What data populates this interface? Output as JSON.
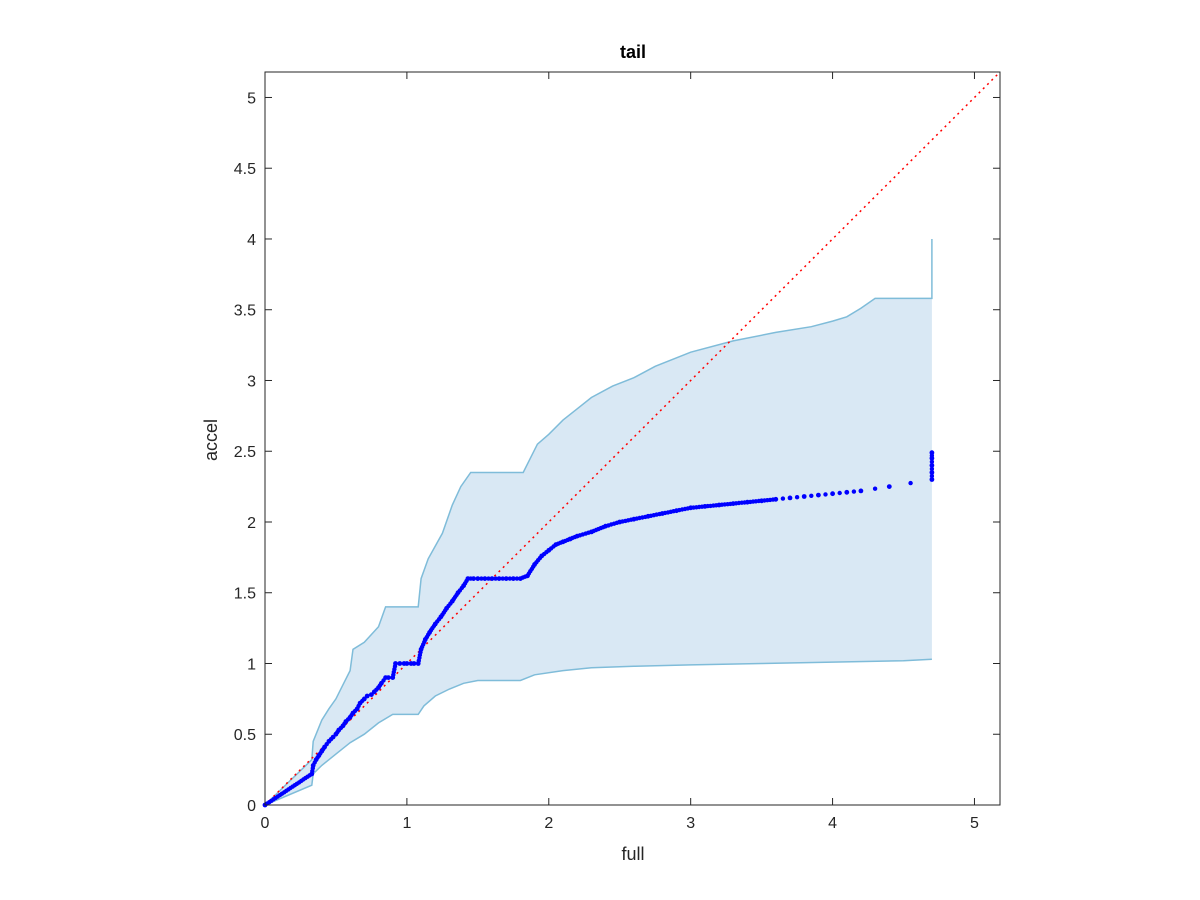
{
  "chart_data": {
    "type": "scatter",
    "title": "tail",
    "xlabel": "full",
    "ylabel": "accel",
    "xlim": [
      0,
      5.18
    ],
    "ylim": [
      0,
      5.18
    ],
    "grid": false,
    "xticks": [
      0,
      1,
      2,
      3,
      4,
      5
    ],
    "xtick_labels": [
      "0",
      "1",
      "2",
      "3",
      "4",
      "5"
    ],
    "yticks": [
      0,
      0.5,
      1,
      1.5,
      2,
      2.5,
      3,
      3.5,
      4,
      4.5,
      5
    ],
    "ytick_labels": [
      "0",
      "0.5",
      "1",
      "1.5",
      "2",
      "2.5",
      "3",
      "3.5",
      "4",
      "4.5",
      "5"
    ],
    "colors": {
      "points": "#0000ff",
      "band_fill": "#d9e8f4",
      "band_edge": "#7fbcd9",
      "reference_line": "#ff0000",
      "axes": "#262626"
    },
    "reference_line": {
      "style": "dotted",
      "x": [
        0,
        5.18
      ],
      "y": [
        0,
        5.18
      ]
    },
    "band": {
      "upper": [
        [
          0,
          0
        ],
        [
          0.33,
          0.32
        ],
        [
          0.34,
          0.45
        ],
        [
          0.4,
          0.6
        ],
        [
          0.45,
          0.68
        ],
        [
          0.5,
          0.75
        ],
        [
          0.55,
          0.85
        ],
        [
          0.6,
          0.95
        ],
        [
          0.62,
          1.1
        ],
        [
          0.7,
          1.15
        ],
        [
          0.8,
          1.26
        ],
        [
          0.85,
          1.4
        ],
        [
          0.93,
          1.4
        ],
        [
          0.95,
          1.4
        ],
        [
          1.08,
          1.4
        ],
        [
          1.1,
          1.6
        ],
        [
          1.15,
          1.74
        ],
        [
          1.25,
          1.92
        ],
        [
          1.32,
          2.12
        ],
        [
          1.38,
          2.25
        ],
        [
          1.45,
          2.35
        ],
        [
          1.82,
          2.35
        ],
        [
          1.87,
          2.45
        ],
        [
          1.92,
          2.55
        ],
        [
          2.0,
          2.62
        ],
        [
          2.1,
          2.72
        ],
        [
          2.2,
          2.8
        ],
        [
          2.3,
          2.88
        ],
        [
          2.45,
          2.96
        ],
        [
          2.6,
          3.02
        ],
        [
          2.75,
          3.1
        ],
        [
          3.0,
          3.2
        ],
        [
          3.3,
          3.28
        ],
        [
          3.6,
          3.34
        ],
        [
          3.85,
          3.38
        ],
        [
          4.0,
          3.42
        ],
        [
          4.1,
          3.45
        ],
        [
          4.2,
          3.51
        ],
        [
          4.3,
          3.58
        ],
        [
          4.7,
          3.58
        ],
        [
          4.7,
          4.0
        ]
      ],
      "lower": [
        [
          0,
          0
        ],
        [
          0.33,
          0.14
        ],
        [
          0.34,
          0.22
        ],
        [
          0.4,
          0.28
        ],
        [
          0.5,
          0.36
        ],
        [
          0.6,
          0.44
        ],
        [
          0.7,
          0.5
        ],
        [
          0.8,
          0.58
        ],
        [
          0.9,
          0.64
        ],
        [
          1.08,
          0.64
        ],
        [
          1.12,
          0.7
        ],
        [
          1.2,
          0.77
        ],
        [
          1.3,
          0.82
        ],
        [
          1.4,
          0.86
        ],
        [
          1.5,
          0.88
        ],
        [
          1.8,
          0.88
        ],
        [
          1.9,
          0.92
        ],
        [
          2.1,
          0.95
        ],
        [
          2.3,
          0.97
        ],
        [
          2.6,
          0.98
        ],
        [
          3.0,
          0.99
        ],
        [
          3.5,
          1.0
        ],
        [
          4.0,
          1.01
        ],
        [
          4.5,
          1.02
        ],
        [
          4.7,
          1.03
        ]
      ]
    },
    "series": [
      {
        "x": [
          0,
          0.33,
          0.34,
          0.36,
          0.38,
          0.4,
          0.42,
          0.45,
          0.48,
          0.5,
          0.52,
          0.55,
          0.57,
          0.6,
          0.62,
          0.65,
          0.67,
          0.7,
          0.72,
          0.75,
          0.77,
          0.8,
          0.82,
          0.85,
          0.87,
          0.9,
          0.92,
          0.95,
          0.98,
          1.0,
          1.03,
          1.05,
          1.08,
          1.1,
          1.13,
          1.16,
          1.2,
          1.24,
          1.28,
          1.32,
          1.36,
          1.4,
          1.43,
          1.47,
          1.5,
          1.55,
          1.6,
          1.65,
          1.7,
          1.75,
          1.8,
          1.85,
          1.9,
          1.95,
          2.0,
          2.05,
          2.1,
          2.15,
          2.2,
          2.3,
          2.4,
          2.5,
          2.6,
          2.7,
          2.8,
          2.9,
          3.0,
          3.1,
          3.2,
          3.3,
          3.4,
          3.5,
          3.6,
          3.7,
          3.8,
          3.9,
          4.0,
          4.1,
          4.2,
          4.4,
          4.7,
          4.7,
          4.7,
          4.7,
          4.7
        ],
        "y": [
          0,
          0.22,
          0.28,
          0.32,
          0.35,
          0.38,
          0.41,
          0.45,
          0.48,
          0.5,
          0.53,
          0.56,
          0.59,
          0.62,
          0.65,
          0.68,
          0.72,
          0.75,
          0.77,
          0.78,
          0.8,
          0.83,
          0.86,
          0.9,
          0.9,
          0.9,
          1.0,
          1.0,
          1.0,
          1.0,
          1.0,
          1.0,
          1.0,
          1.1,
          1.17,
          1.22,
          1.28,
          1.33,
          1.39,
          1.44,
          1.5,
          1.55,
          1.6,
          1.6,
          1.6,
          1.6,
          1.6,
          1.6,
          1.6,
          1.6,
          1.6,
          1.62,
          1.7,
          1.76,
          1.8,
          1.84,
          1.86,
          1.88,
          1.9,
          1.93,
          1.97,
          2.0,
          2.02,
          2.04,
          2.06,
          2.08,
          2.1,
          2.11,
          2.12,
          2.13,
          2.14,
          2.15,
          2.16,
          2.17,
          2.18,
          2.19,
          2.2,
          2.21,
          2.22,
          2.25,
          2.3,
          2.35,
          2.4,
          2.45,
          2.49
        ]
      }
    ]
  }
}
